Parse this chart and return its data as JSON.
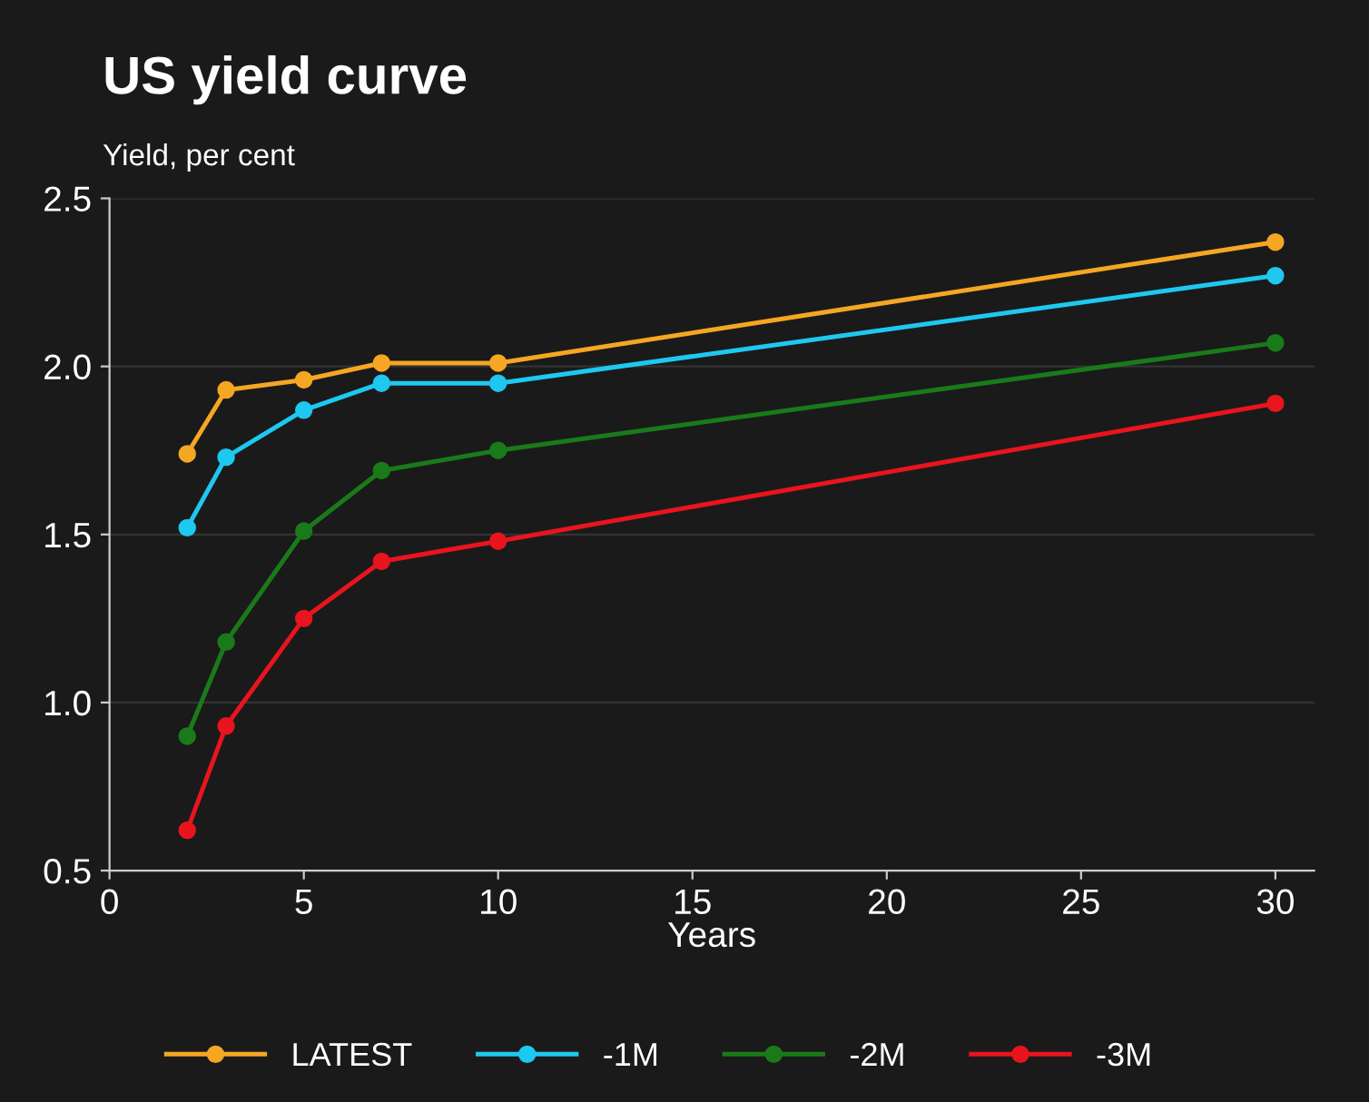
{
  "chart_data": {
    "type": "line",
    "title": "US yield curve",
    "subtitle": "Yield, per cent",
    "xlabel": "Years",
    "x": [
      2,
      3,
      5,
      7,
      10,
      30
    ],
    "series": [
      {
        "name": "LATEST",
        "color": "#f5a623",
        "values": [
          1.74,
          1.93,
          1.96,
          2.01,
          2.01,
          2.37
        ]
      },
      {
        "name": "-1M",
        "color": "#1ec8f0",
        "values": [
          1.52,
          1.73,
          1.87,
          1.95,
          1.95,
          2.27
        ]
      },
      {
        "name": "-2M",
        "color": "#1a7a1a",
        "values": [
          0.9,
          1.18,
          1.51,
          1.69,
          1.75,
          2.07
        ]
      },
      {
        "name": "-3M",
        "color": "#e8141e",
        "values": [
          0.62,
          0.93,
          1.25,
          1.42,
          1.48,
          1.89
        ]
      }
    ],
    "xlim": [
      0,
      31
    ],
    "ylim": [
      0.5,
      2.5
    ],
    "xticks": [
      0,
      5,
      10,
      15,
      20,
      25,
      30
    ],
    "yticks": [
      {
        "value": 0.5,
        "label": "0.5"
      },
      {
        "value": 1,
        "label": "1.0"
      },
      {
        "value": 1.5,
        "label": "1.5"
      },
      {
        "value": 2,
        "label": "2.0"
      },
      {
        "value": 2.5,
        "label": "2.5"
      }
    ],
    "grid": "y",
    "legend": "bottom",
    "marker": "circle",
    "line_style": "solid"
  }
}
